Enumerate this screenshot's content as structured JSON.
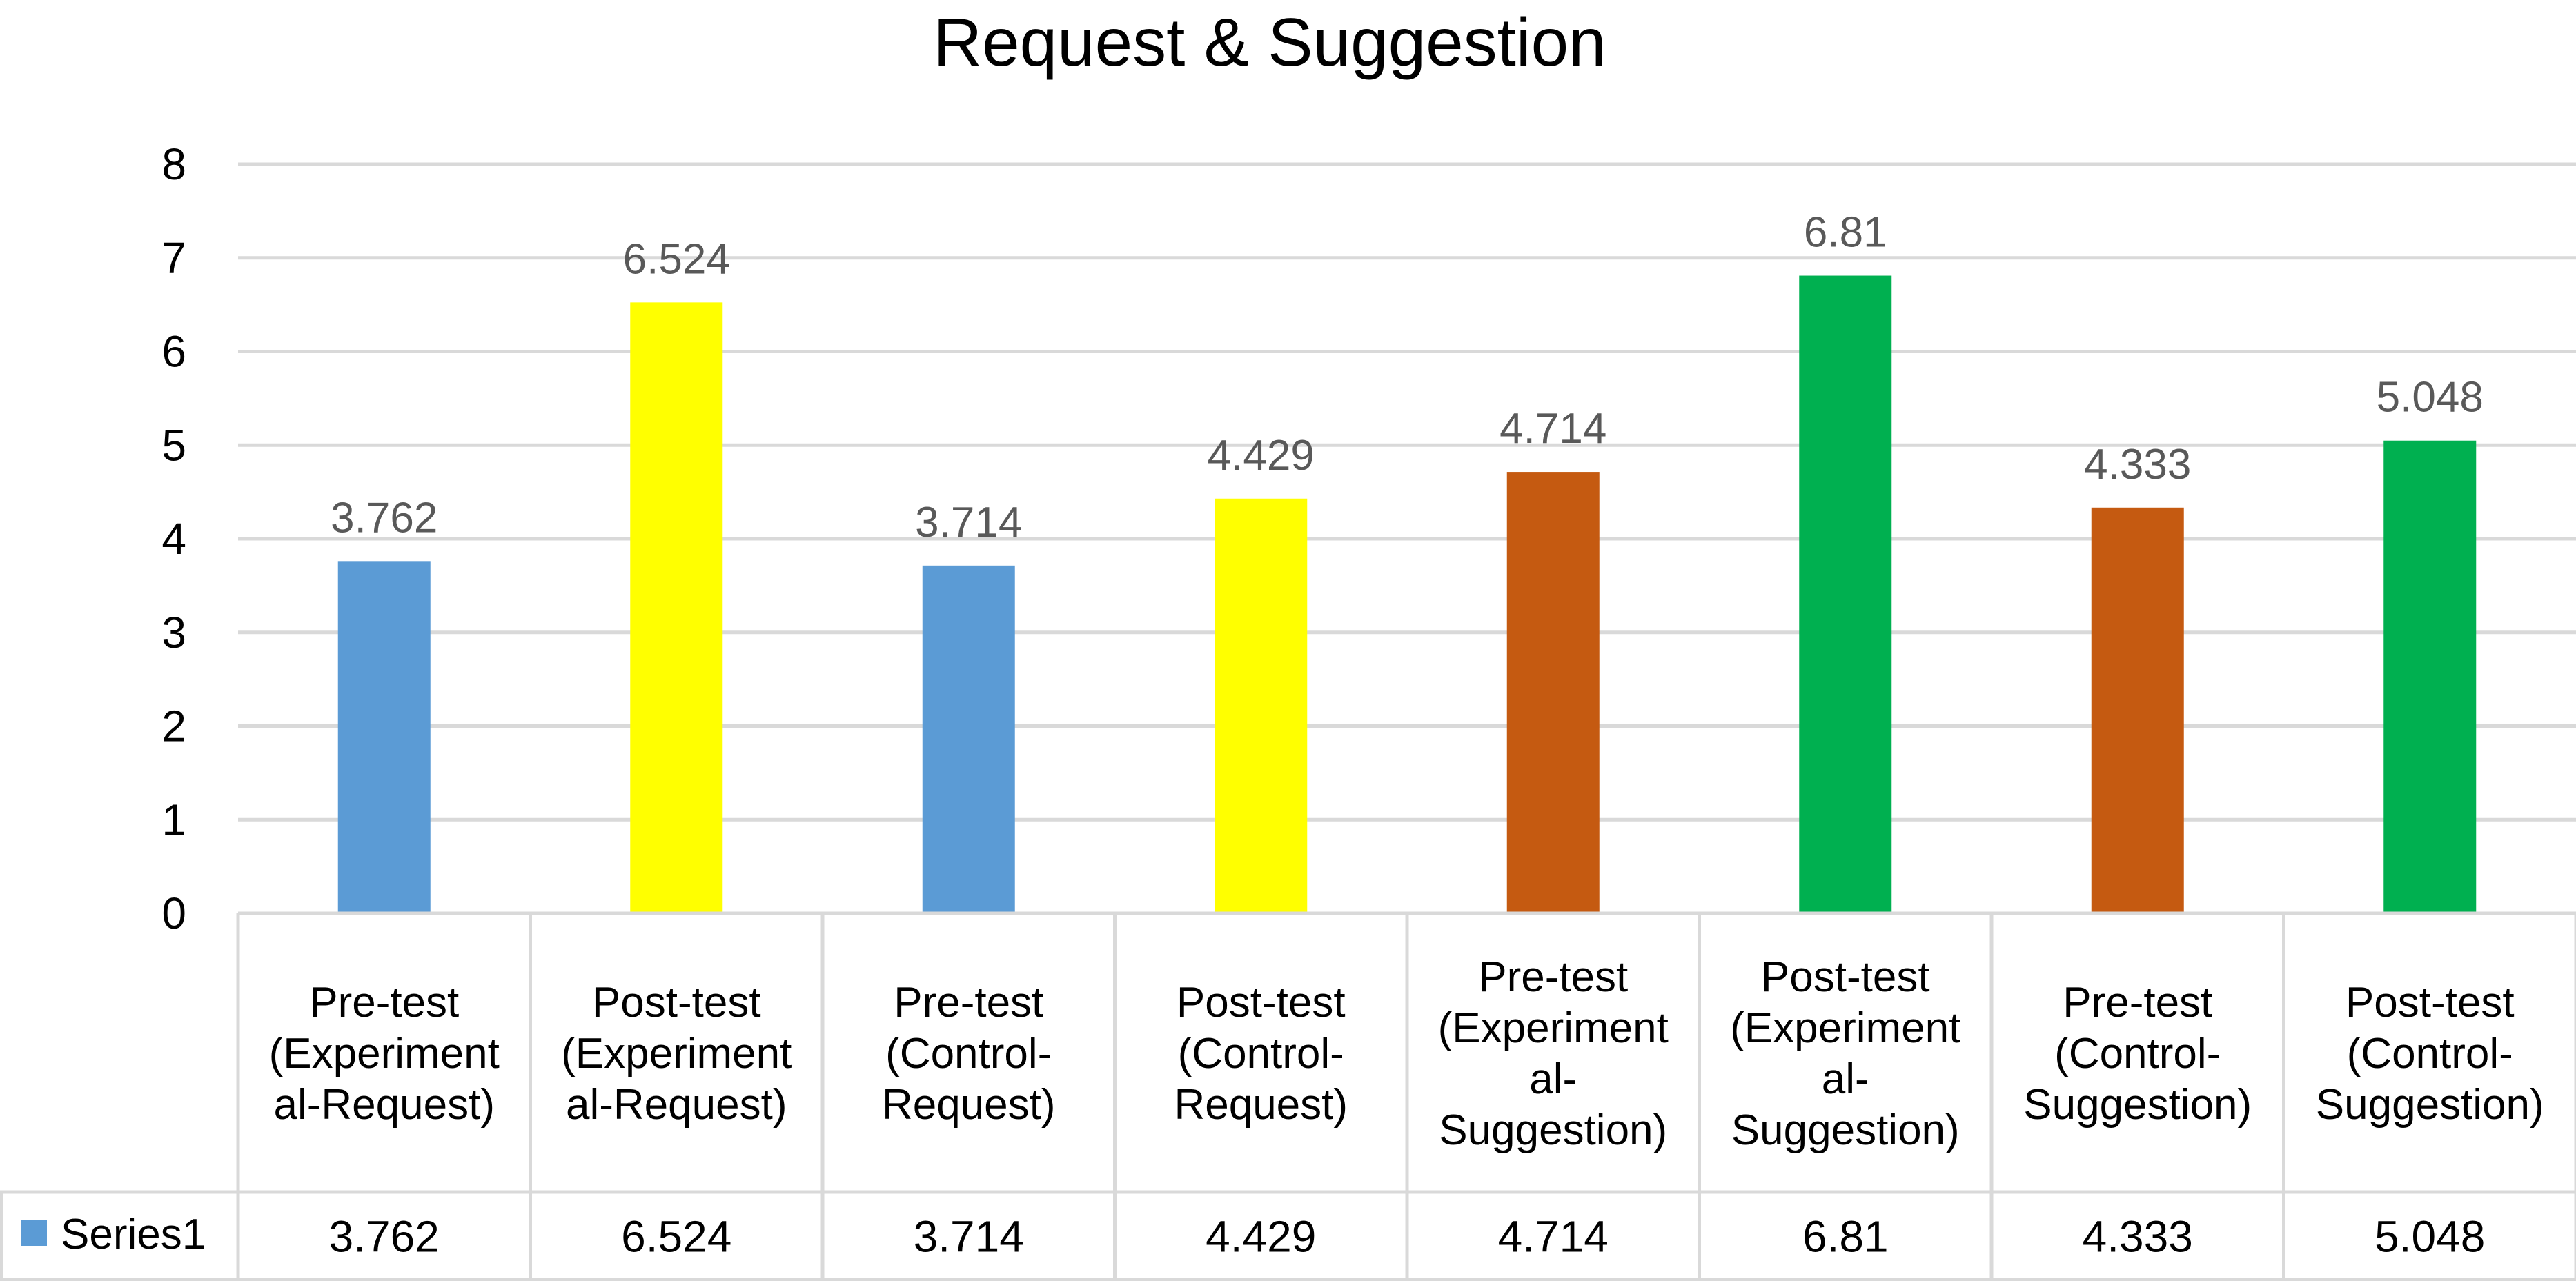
{
  "chart_data": {
    "type": "bar",
    "title": "Request & Suggestion",
    "xlabel": "",
    "ylabel": "",
    "ylim": [
      0,
      8
    ],
    "yticks": [
      "0",
      "1",
      "2",
      "3",
      "4",
      "5",
      "6",
      "7",
      "8"
    ],
    "grid": true,
    "categories": [
      [
        "Pre-test",
        "(Experiment",
        "al-Request)"
      ],
      [
        "Post-test",
        "(Experiment",
        "al-Request)"
      ],
      [
        "Pre-test",
        "(Control-",
        "Request)"
      ],
      [
        "Post-test",
        "(Control-",
        "Request)"
      ],
      [
        "Pre-test",
        "(Experiment",
        "al-",
        "Suggestion)"
      ],
      [
        "Post-test",
        "(Experiment",
        "al-",
        "Suggestion)"
      ],
      [
        "Pre-test",
        "(Control-",
        "Suggestion)"
      ],
      [
        "Post-test",
        "(Control-",
        "Suggestion)"
      ]
    ],
    "series": [
      {
        "name": "Series1",
        "values": [
          3.762,
          6.524,
          3.714,
          4.429,
          4.714,
          6.81,
          4.333,
          5.048
        ],
        "value_labels": [
          "3.762",
          "6.524",
          "3.714",
          "4.429",
          "4.714",
          "6.81",
          "4.333",
          "5.048"
        ],
        "legend_color": "#5B9BD5"
      }
    ],
    "bar_colors": [
      "#5B9BD5",
      "#FFFF00",
      "#5B9BD5",
      "#FFFF00",
      "#C55A11",
      "#00B050",
      "#C55A11",
      "#00B050"
    ],
    "data_table": true
  }
}
